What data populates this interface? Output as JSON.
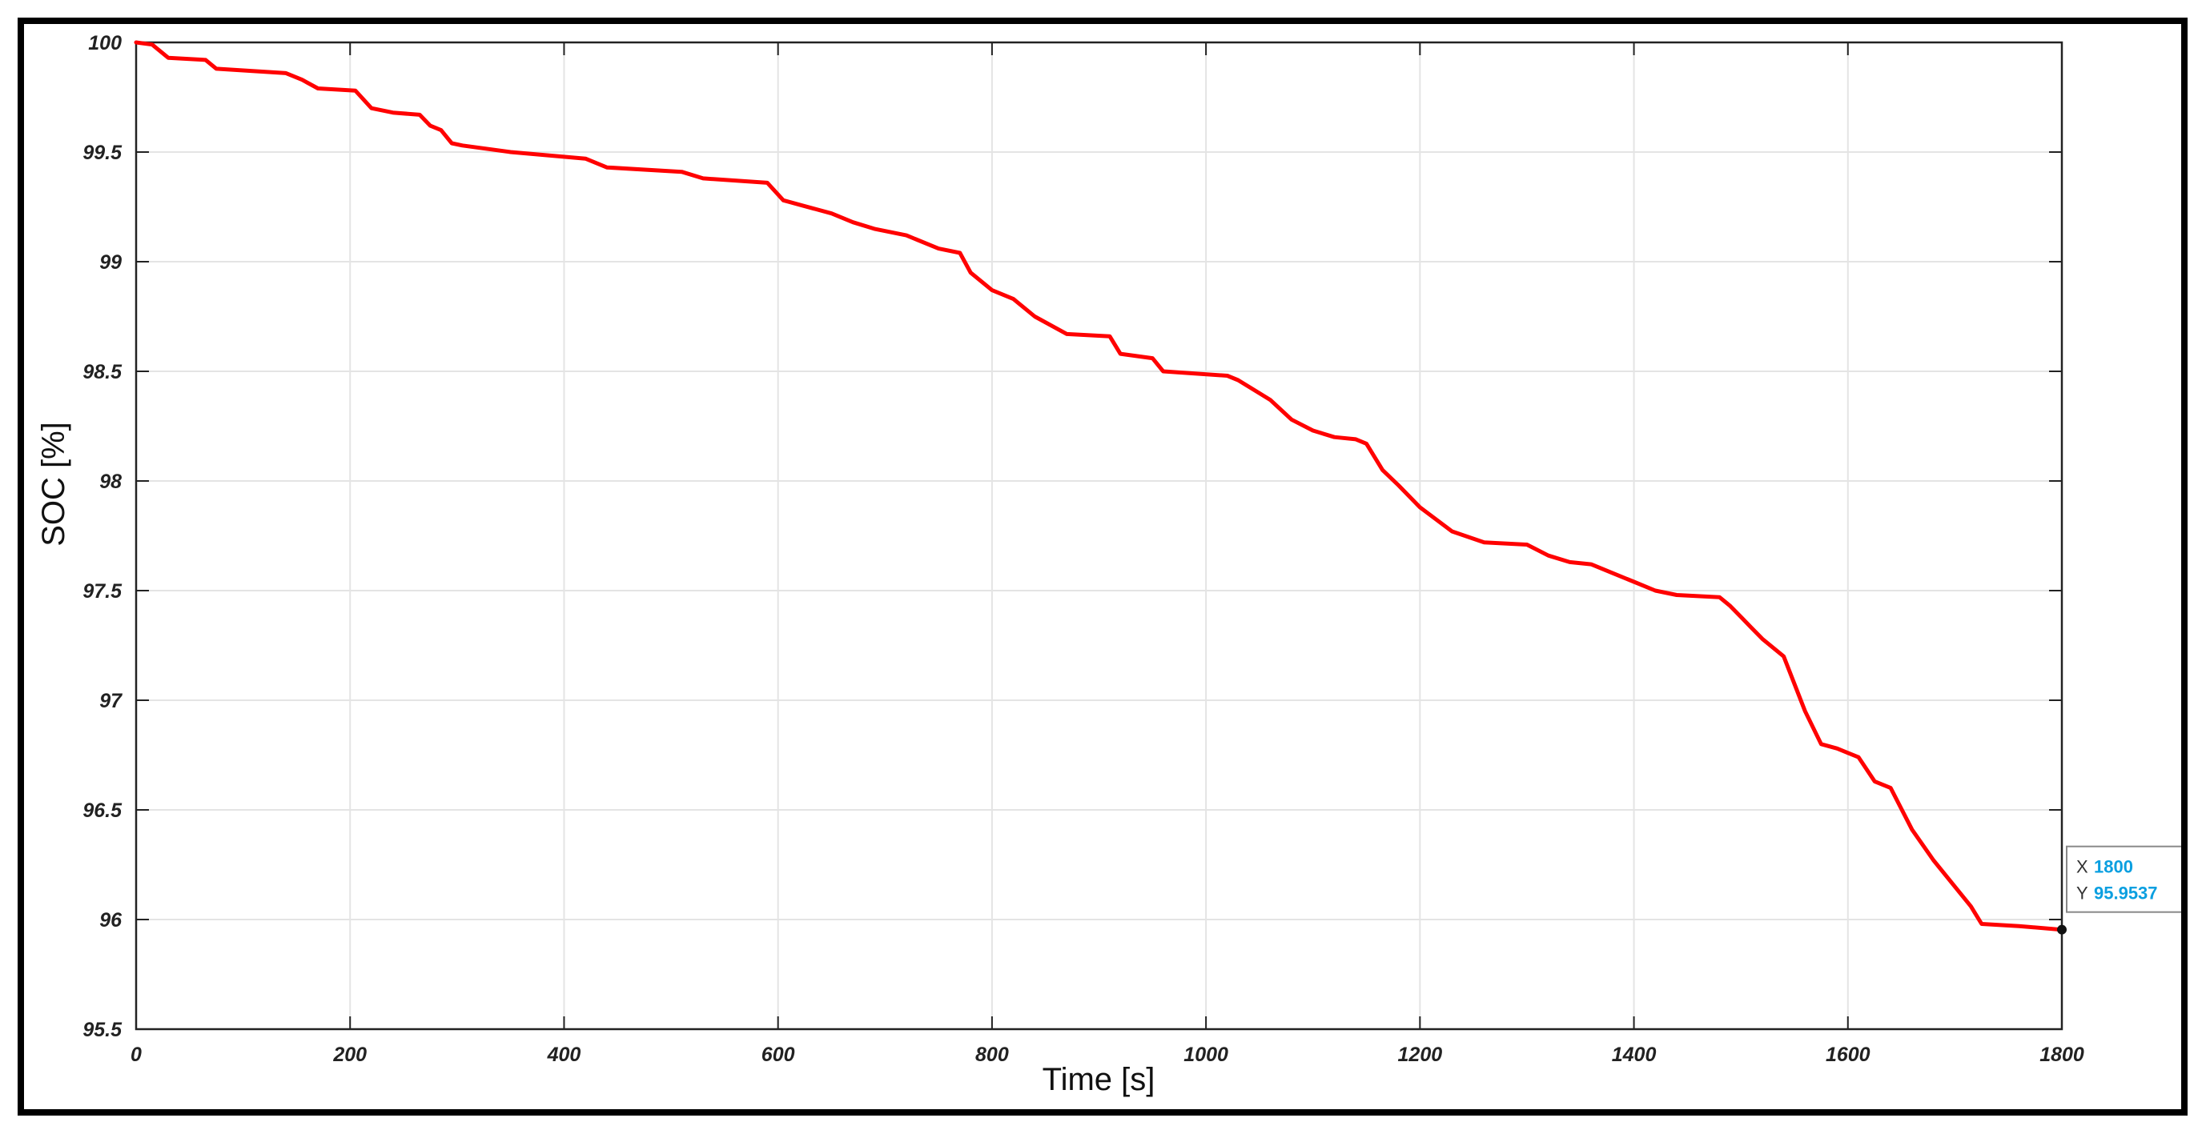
{
  "chart_data": {
    "type": "line",
    "xlabel": "Time [s]",
    "ylabel": "SOC [%]",
    "xlim": [
      0,
      1800
    ],
    "ylim": [
      95.5,
      100
    ],
    "xticks": [
      0,
      200,
      400,
      600,
      800,
      1000,
      1200,
      1400,
      1600,
      1800
    ],
    "yticks": [
      95.5,
      96,
      96.5,
      97,
      97.5,
      98,
      98.5,
      99,
      99.5,
      100
    ],
    "xtick_labels": [
      "0",
      "200",
      "400",
      "600",
      "800",
      "1000",
      "1200",
      "1400",
      "1600",
      "1800"
    ],
    "ytick_labels": [
      "95.5",
      "96",
      "96.5",
      "97",
      "97.5",
      "98",
      "98.5",
      "99",
      "99.5",
      "100"
    ],
    "grid": true,
    "series": [
      {
        "color": "#ff0000",
        "x": [
          0,
          15,
          30,
          65,
          75,
          140,
          155,
          170,
          205,
          220,
          240,
          265,
          275,
          285,
          295,
          305,
          350,
          420,
          440,
          510,
          530,
          590,
          605,
          620,
          650,
          670,
          690,
          720,
          750,
          770,
          780,
          800,
          820,
          840,
          870,
          910,
          920,
          950,
          960,
          1020,
          1030,
          1050,
          1060,
          1080,
          1100,
          1120,
          1140,
          1150,
          1165,
          1180,
          1200,
          1230,
          1260,
          1300,
          1320,
          1340,
          1360,
          1380,
          1400,
          1420,
          1440,
          1480,
          1490,
          1500,
          1510,
          1520,
          1540,
          1560,
          1575,
          1590,
          1600,
          1610,
          1625,
          1640,
          1660,
          1680,
          1700,
          1715,
          1725,
          1760,
          1800
        ],
        "y": [
          100.0,
          99.99,
          99.93,
          99.92,
          99.88,
          99.86,
          99.83,
          99.79,
          99.78,
          99.7,
          99.68,
          99.67,
          99.62,
          99.6,
          99.54,
          99.53,
          99.5,
          99.47,
          99.43,
          99.41,
          99.38,
          99.36,
          99.28,
          99.26,
          99.22,
          99.18,
          99.15,
          99.12,
          99.06,
          99.04,
          98.95,
          98.87,
          98.83,
          98.75,
          98.67,
          98.66,
          98.58,
          98.56,
          98.5,
          98.48,
          98.46,
          98.4,
          98.37,
          98.28,
          98.23,
          98.2,
          98.19,
          98.17,
          98.05,
          97.98,
          97.88,
          97.77,
          97.72,
          97.71,
          97.66,
          97.63,
          97.62,
          97.58,
          97.54,
          97.5,
          97.48,
          97.47,
          97.43,
          97.38,
          97.33,
          97.28,
          97.2,
          96.95,
          96.8,
          96.78,
          96.76,
          96.74,
          96.63,
          96.6,
          96.41,
          96.27,
          96.15,
          96.06,
          95.98,
          95.97,
          95.9537
        ]
      }
    ],
    "datatip": {
      "x_label": "X",
      "x_value": "1800",
      "y_label": "Y",
      "y_value": "95.9537"
    }
  }
}
